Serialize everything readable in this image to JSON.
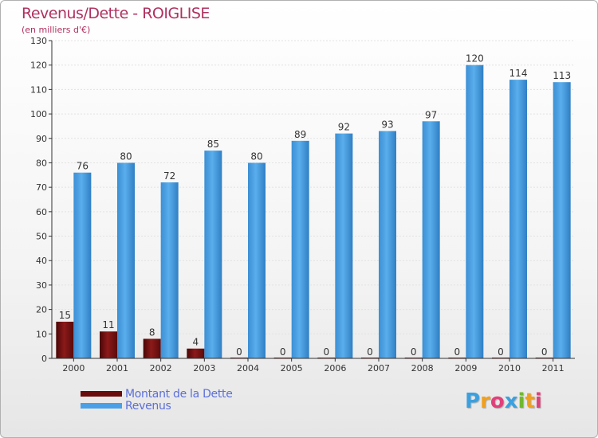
{
  "chart_data": {
    "type": "bar",
    "title": "Revenus/Dette - ROIGLISE",
    "subtitle": "(en milliers d'€)",
    "categories": [
      "2000",
      "2001",
      "2002",
      "2003",
      "2004",
      "2005",
      "2006",
      "2007",
      "2008",
      "2009",
      "2010",
      "2011"
    ],
    "series": [
      {
        "name": "Montant de la Dette",
        "color": "#7a1010",
        "values": [
          15,
          11,
          8,
          4,
          0,
          0,
          0,
          0,
          0,
          0,
          0,
          0
        ]
      },
      {
        "name": "Revenus",
        "color": "#4aa0e6",
        "values": [
          76,
          80,
          72,
          85,
          80,
          89,
          92,
          93,
          97,
          120,
          114,
          113
        ]
      }
    ],
    "ylim": [
      0,
      130
    ],
    "yticks": [
      0,
      10,
      20,
      30,
      40,
      50,
      60,
      70,
      80,
      90,
      100,
      110,
      120,
      130
    ],
    "grid": true,
    "legend": "bottom-left"
  },
  "logo": {
    "letters": [
      "P",
      "r",
      "o",
      "x",
      "i",
      "t",
      "i"
    ],
    "colors": [
      "#3aa0e0",
      "#f0a020",
      "#e0407a",
      "#3aa0e0",
      "#70b830",
      "#f0a020",
      "#e0407a"
    ]
  }
}
